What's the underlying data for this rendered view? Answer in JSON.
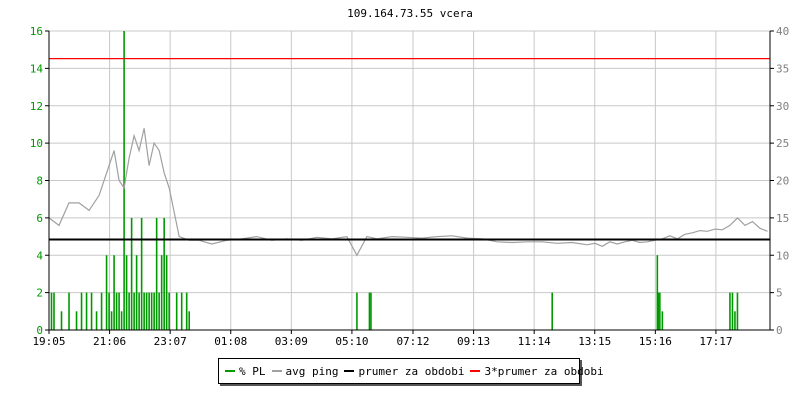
{
  "chart_data": {
    "type": "line",
    "title": "109.164.73.55 vcera",
    "x_tick_labels": [
      "19:05",
      "21:06",
      "23:07",
      "01:08",
      "03:09",
      "05:10",
      "07:12",
      "09:13",
      "11:14",
      "13:15",
      "15:16",
      "17:17"
    ],
    "y_left": {
      "ylim": [
        0,
        16
      ],
      "ticks": [
        0,
        2,
        4,
        6,
        8,
        10,
        12,
        14,
        16
      ]
    },
    "y_right": {
      "ylim": [
        0,
        40
      ],
      "ticks": [
        0,
        5,
        10,
        15,
        20,
        25,
        30,
        35,
        40
      ]
    },
    "grid": true,
    "legend_position": "bottom-center",
    "reference_lines": [
      {
        "name": "prumer za obdobi",
        "value_ping": 12.1,
        "color": "#000000"
      },
      {
        "name": "3*prumer za obdobi",
        "value_ping": 36.3,
        "color": "#ff0000"
      }
    ],
    "series": [
      {
        "name": "% PL",
        "axis": "left",
        "color": "#009900",
        "style": "bars",
        "x": [
          "19:10",
          "19:15",
          "19:30",
          "19:45",
          "20:00",
          "20:10",
          "20:20",
          "20:30",
          "20:40",
          "20:50",
          "21:00",
          "21:05",
          "21:10",
          "21:15",
          "21:20",
          "21:25",
          "21:30",
          "21:35",
          "21:40",
          "21:45",
          "21:50",
          "21:55",
          "22:00",
          "22:05",
          "22:10",
          "22:15",
          "22:20",
          "22:25",
          "22:30",
          "22:35",
          "22:40",
          "22:45",
          "22:50",
          "22:55",
          "23:00",
          "23:05",
          "23:20",
          "23:30",
          "23:40",
          "23:45",
          "05:20",
          "05:45",
          "05:48",
          "11:50",
          "15:20",
          "15:22",
          "15:25",
          "15:30",
          "17:45",
          "17:50",
          "17:55",
          "18:00"
        ],
        "values": [
          2,
          2,
          1,
          2,
          1,
          2,
          2,
          2,
          1,
          2,
          4,
          2,
          1,
          4,
          2,
          2,
          1,
          16,
          4,
          2,
          6,
          2,
          4,
          2,
          6,
          2,
          2,
          2,
          2,
          2,
          6,
          2,
          4,
          6,
          4,
          2,
          2,
          2,
          2,
          1,
          2,
          2,
          2,
          2,
          4,
          2,
          2,
          1,
          2,
          2,
          1,
          2
        ]
      },
      {
        "name": "avg ping",
        "axis": "right",
        "color": "#a0a0a0",
        "style": "line",
        "x": [
          "19:05",
          "19:25",
          "19:45",
          "20:05",
          "20:25",
          "20:45",
          "21:05",
          "21:15",
          "21:25",
          "21:35",
          "21:45",
          "21:55",
          "22:05",
          "22:15",
          "22:25",
          "22:35",
          "22:45",
          "22:55",
          "23:05",
          "23:25",
          "23:45",
          "00:05",
          "00:30",
          "01:00",
          "01:30",
          "02:00",
          "02:30",
          "03:00",
          "03:30",
          "04:00",
          "04:30",
          "05:00",
          "05:20",
          "05:40",
          "06:00",
          "06:30",
          "07:00",
          "07:30",
          "08:00",
          "08:30",
          "09:00",
          "09:30",
          "10:00",
          "10:30",
          "11:00",
          "11:30",
          "12:00",
          "12:30",
          "13:00",
          "13:15",
          "13:30",
          "13:45",
          "14:00",
          "14:15",
          "14:30",
          "14:45",
          "15:00",
          "15:15",
          "15:30",
          "15:45",
          "16:00",
          "16:15",
          "16:30",
          "16:45",
          "17:00",
          "17:15",
          "17:30",
          "17:45",
          "18:00",
          "18:15",
          "18:30",
          "18:45",
          "19:00"
        ],
        "values": [
          15,
          14,
          17,
          17,
          16,
          18,
          22,
          24,
          20,
          19,
          23,
          26,
          24,
          27,
          22,
          25,
          24,
          21,
          19,
          12.5,
          12,
          12,
          11.5,
          12,
          12.2,
          12.5,
          12,
          12.2,
          12,
          12.4,
          12.2,
          12.5,
          10,
          12.5,
          12.2,
          12.5,
          12.4,
          12.3,
          12.5,
          12.6,
          12.3,
          12.2,
          11.8,
          11.7,
          11.8,
          11.8,
          11.6,
          11.7,
          11.4,
          11.6,
          11.2,
          11.8,
          11.5,
          11.8,
          12,
          11.7,
          11.8,
          12,
          12.2,
          12.6,
          12.2,
          12.8,
          13,
          13.3,
          13.2,
          13.5,
          13.4,
          14,
          15,
          14,
          14.5,
          13.6,
          13.2
        ]
      }
    ]
  },
  "legend": {
    "items": [
      {
        "label": "% PL",
        "color": "#009900"
      },
      {
        "label": "avg ping",
        "color": "#a0a0a0"
      },
      {
        "label": "prumer za obdobi",
        "color": "#000000"
      },
      {
        "label": "3*prumer za obdobi",
        "color": "#ff0000"
      }
    ]
  }
}
